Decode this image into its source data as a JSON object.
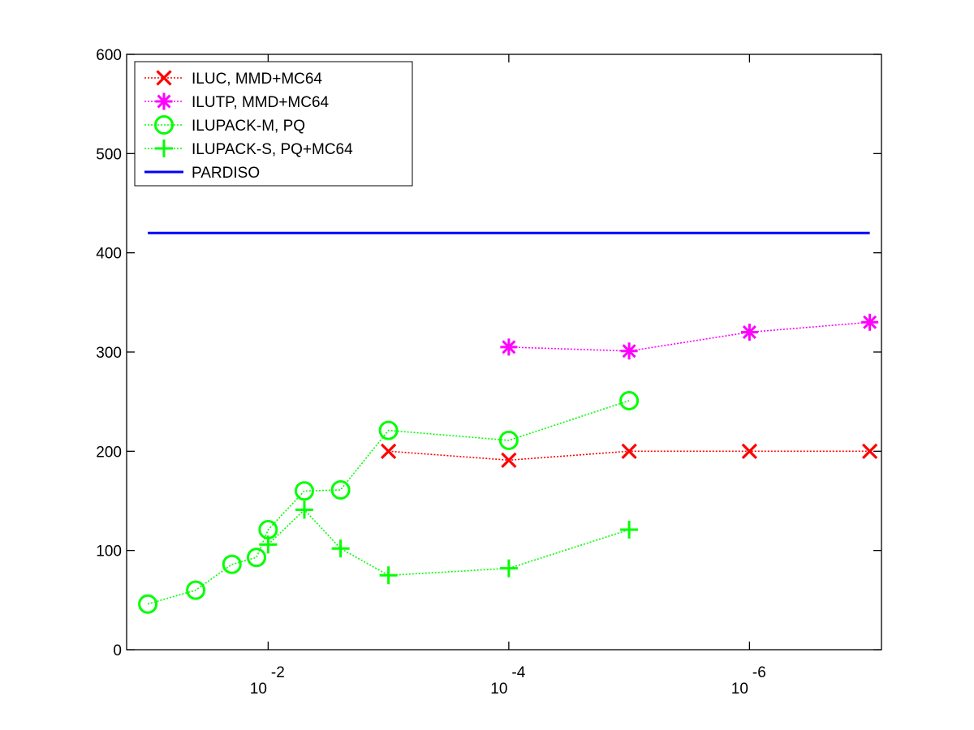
{
  "chart_data": {
    "type": "line",
    "title": "",
    "xlabel": "",
    "ylabel": "",
    "xscale": "log",
    "xaxis_reversed": true,
    "xlim": [
      0.15,
      8e-08
    ],
    "ylim": [
      0,
      600
    ],
    "grid": false,
    "legend_position": "top-left",
    "x_ticks": [
      {
        "value": 0.01,
        "base": "10",
        "exp": "-2"
      },
      {
        "value": 0.0001,
        "base": "10",
        "exp": "-4"
      },
      {
        "value": 1e-06,
        "base": "10",
        "exp": "-6"
      }
    ],
    "y_ticks": [
      0,
      100,
      200,
      300,
      400,
      500,
      600
    ],
    "series": [
      {
        "name": "ILUC, MMD+MC64",
        "color": "#ff0000",
        "marker": "x",
        "line": "dotted",
        "x": [
          0.001,
          0.0001,
          1e-05,
          1e-06,
          1e-07
        ],
        "y": [
          200,
          191,
          200,
          200,
          200
        ]
      },
      {
        "name": "ILUTP, MMD+MC64",
        "color": "#ff00ff",
        "marker": "asterisk",
        "line": "dotted",
        "x": [
          0.0001,
          1e-05,
          1e-06,
          1e-07
        ],
        "y": [
          305,
          301,
          320,
          330
        ]
      },
      {
        "name": "ILUPACK-M, PQ",
        "color": "#00ff00",
        "marker": "circle",
        "line": "dotted",
        "x": [
          0.1,
          0.04,
          0.02,
          0.0125,
          0.01,
          0.005,
          0.0025,
          0.001,
          0.0001,
          1e-05
        ],
        "y": [
          46,
          60,
          86,
          93,
          121,
          160,
          161,
          221,
          211,
          251
        ]
      },
      {
        "name": "ILUPACK-S, PQ+MC64",
        "color": "#00ff00",
        "marker": "plus",
        "line": "dotted",
        "x": [
          0.01,
          0.005,
          0.0025,
          0.001,
          0.0001,
          1e-05
        ],
        "y": [
          106,
          141,
          102,
          75,
          82,
          121
        ]
      },
      {
        "name": "PARDISO",
        "color": "#0000ff",
        "marker": "none",
        "line": "solid",
        "x": [
          0.1,
          1e-07
        ],
        "y": [
          420,
          420
        ]
      }
    ]
  }
}
